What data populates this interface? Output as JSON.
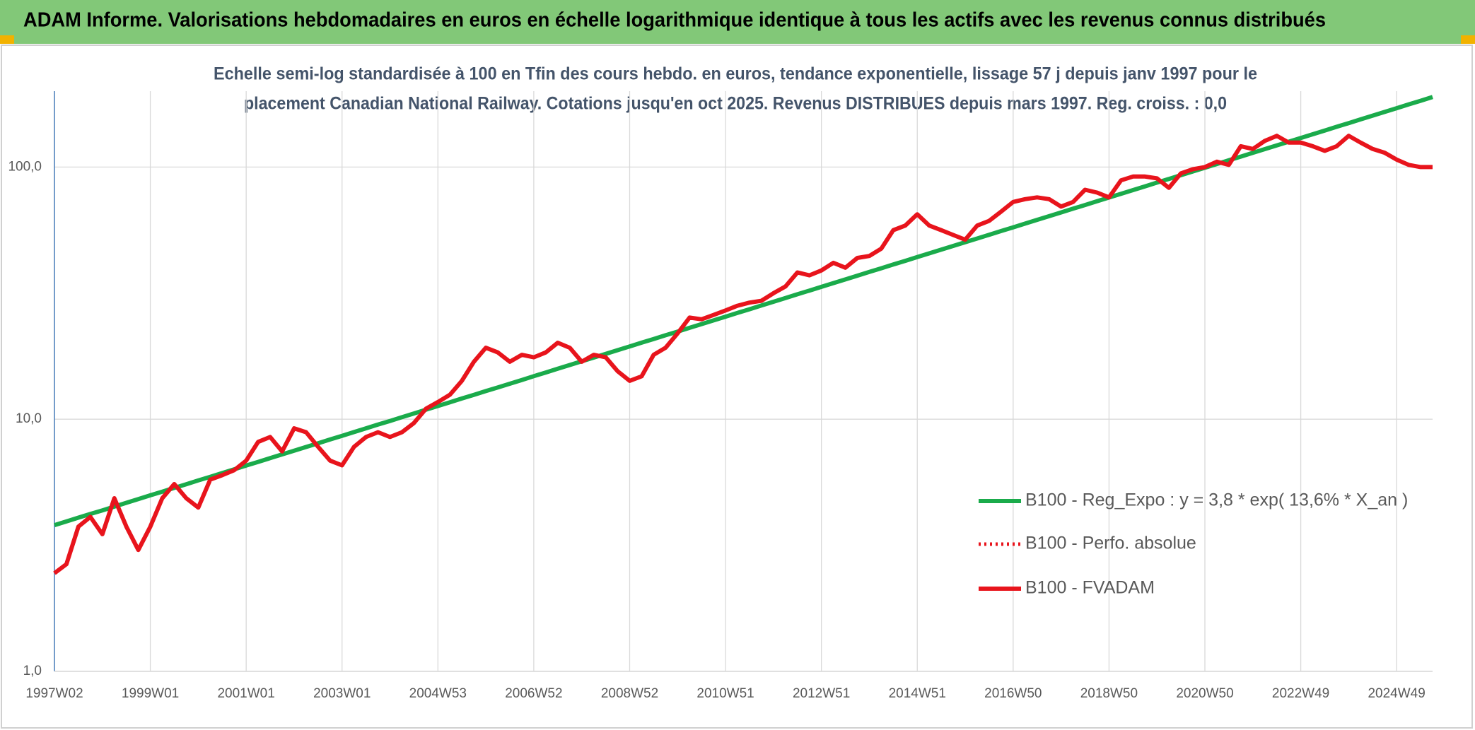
{
  "chart_data": {
    "type": "line",
    "title": "ADAM Informe. Valorisations hebdomadaires en euros en échelle logarithmique identique à tous les actifs avec les revenus connus distribués",
    "subtitle": [
      "Echelle semi-log standardisée à 100 en Tfin des cours hebdo. en euros, tendance exponentielle, lissage 57 j depuis janv 1997 pour le",
      "placement Canadian National Railway. Cotations jusqu'en oct 2025. Revenus DISTRIBUES depuis mars 1997. Reg. croiss. : 0,0"
    ],
    "log_scale": true,
    "grid": true,
    "legend": "lower right",
    "ylim": [
      1,
      200
    ],
    "yticks": [
      {
        "value": 1,
        "label": "1,0"
      },
      {
        "value": 10,
        "label": "10,0"
      },
      {
        "value": 100,
        "label": "100,0"
      }
    ],
    "categories": [
      "1997W02",
      null,
      null,
      null,
      null,
      null,
      null,
      null,
      "1999W01",
      null,
      null,
      null,
      null,
      null,
      null,
      null,
      "2001W01",
      null,
      null,
      null,
      null,
      null,
      null,
      null,
      "2003W01",
      null,
      null,
      null,
      null,
      null,
      null,
      null,
      "2004W53",
      null,
      null,
      null,
      null,
      null,
      null,
      null,
      "2006W52",
      null,
      null,
      null,
      null,
      null,
      null,
      null,
      "2008W52",
      null,
      null,
      null,
      null,
      null,
      null,
      null,
      "2010W51",
      null,
      null,
      null,
      null,
      null,
      null,
      null,
      "2012W51",
      null,
      null,
      null,
      null,
      null,
      null,
      null,
      "2014W51",
      null,
      null,
      null,
      null,
      null,
      null,
      null,
      "2016W50",
      null,
      null,
      null,
      null,
      null,
      null,
      null,
      "2018W50",
      null,
      null,
      null,
      null,
      null,
      null,
      null,
      "2020W50",
      null,
      null,
      null,
      null,
      null,
      null,
      null,
      "2022W49",
      null,
      null,
      null,
      null,
      null,
      null,
      null,
      "2024W49",
      null,
      null,
      null
    ],
    "series": [
      {
        "name": "B100 - Reg_Expo : y = 3,8 * exp( 13,6% *  X_an )",
        "color": "#1aab4b",
        "style": "solid",
        "values": [
          3.8,
          3.93,
          4.07,
          4.21,
          4.35,
          4.5,
          4.66,
          4.82,
          4.99,
          5.16,
          5.34,
          5.52,
          5.72,
          5.91,
          6.12,
          6.33,
          6.55,
          6.77,
          7.01,
          7.25,
          7.5,
          7.76,
          8.03,
          8.31,
          8.59,
          8.89,
          9.2,
          9.52,
          9.84,
          10.19,
          10.54,
          10.9,
          11.28,
          11.67,
          12.08,
          12.49,
          12.93,
          13.37,
          13.83,
          14.31,
          14.81,
          15.32,
          15.85,
          16.4,
          16.97,
          17.55,
          18.16,
          18.79,
          19.44,
          20.11,
          20.8,
          21.52,
          22.26,
          23.03,
          23.83,
          24.65,
          25.51,
          26.39,
          27.3,
          28.25,
          29.23,
          30.24,
          31.29,
          32.37,
          33.49,
          34.65,
          35.84,
          37.08,
          38.37,
          39.69,
          41.06,
          42.48,
          43.95,
          45.47,
          47.04,
          48.67,
          50.35,
          52.09,
          53.9,
          55.76,
          57.68,
          59.68,
          61.74,
          63.88,
          66.08,
          68.37,
          70.73,
          73.18,
          75.71,
          78.33,
          81.04,
          83.84,
          86.75,
          89.74,
          92.85,
          96.06,
          99.38,
          102.81,
          106.37,
          110.05,
          113.85,
          117.79,
          121.86,
          126.08,
          130.44,
          134.95,
          139.61,
          144.44,
          149.44,
          154.61,
          159.95,
          165.48,
          171.21,
          177.13,
          183.25,
          189.59
        ]
      },
      {
        "name": "B100 - Perfo. absolue",
        "color": "#e8141c",
        "style": "dotted",
        "values": [
          2.45,
          2.66,
          3.75,
          4.1,
          3.5,
          4.86,
          3.75,
          3.03,
          3.75,
          4.86,
          5.53,
          4.86,
          4.46,
          5.76,
          6.0,
          6.28,
          6.85,
          8.13,
          8.5,
          7.45,
          9.2,
          8.88,
          7.77,
          6.85,
          6.56,
          7.77,
          8.5,
          8.88,
          8.5,
          8.88,
          9.66,
          11.0,
          11.7,
          12.5,
          14.2,
          16.9,
          19.2,
          18.4,
          16.9,
          18.0,
          17.6,
          18.4,
          20.1,
          19.2,
          16.9,
          18.0,
          17.6,
          15.5,
          14.2,
          14.8,
          18.0,
          19.2,
          21.9,
          25.3,
          24.9,
          25.9,
          27.0,
          28.2,
          29.0,
          29.5,
          31.6,
          33.6,
          38.2,
          37.2,
          38.9,
          41.7,
          39.9,
          43.6,
          44.4,
          47.5,
          56.2,
          58.6,
          65.0,
          58.6,
          56.2,
          53.8,
          51.5,
          58.6,
          61.2,
          66.6,
          72.7,
          74.6,
          75.8,
          74.6,
          69.7,
          72.7,
          81.3,
          79.2,
          75.8,
          88.6,
          91.7,
          91.7,
          90.2,
          82.7,
          94.4,
          98.1,
          100,
          105,
          102,
          121,
          118,
          127,
          133,
          125,
          125,
          121,
          116,
          121,
          133,
          125,
          118,
          114,
          107,
          102,
          100,
          100
        ]
      },
      {
        "name": "B100 - FVADAM",
        "color": "#e8141c",
        "style": "solid",
        "values": [
          2.45,
          2.66,
          3.75,
          4.1,
          3.5,
          4.86,
          3.75,
          3.03,
          3.75,
          4.86,
          5.53,
          4.86,
          4.46,
          5.76,
          6.0,
          6.28,
          6.85,
          8.13,
          8.5,
          7.45,
          9.2,
          8.88,
          7.77,
          6.85,
          6.56,
          7.77,
          8.5,
          8.88,
          8.5,
          8.88,
          9.66,
          11.0,
          11.7,
          12.5,
          14.2,
          16.9,
          19.2,
          18.4,
          16.9,
          18.0,
          17.6,
          18.4,
          20.1,
          19.2,
          16.9,
          18.0,
          17.6,
          15.5,
          14.2,
          14.8,
          18.0,
          19.2,
          21.9,
          25.3,
          24.9,
          25.9,
          27.0,
          28.2,
          29.0,
          29.5,
          31.6,
          33.6,
          38.2,
          37.2,
          38.9,
          41.7,
          39.9,
          43.6,
          44.4,
          47.5,
          56.2,
          58.6,
          65.0,
          58.6,
          56.2,
          53.8,
          51.5,
          58.6,
          61.2,
          66.6,
          72.7,
          74.6,
          75.8,
          74.6,
          69.7,
          72.7,
          81.3,
          79.2,
          75.8,
          88.6,
          91.7,
          91.7,
          90.2,
          82.7,
          94.4,
          98.1,
          100,
          105,
          102,
          121,
          118,
          127,
          133,
          125,
          125,
          121,
          116,
          121,
          133,
          125,
          118,
          114,
          107,
          102,
          100,
          100
        ]
      }
    ]
  }
}
